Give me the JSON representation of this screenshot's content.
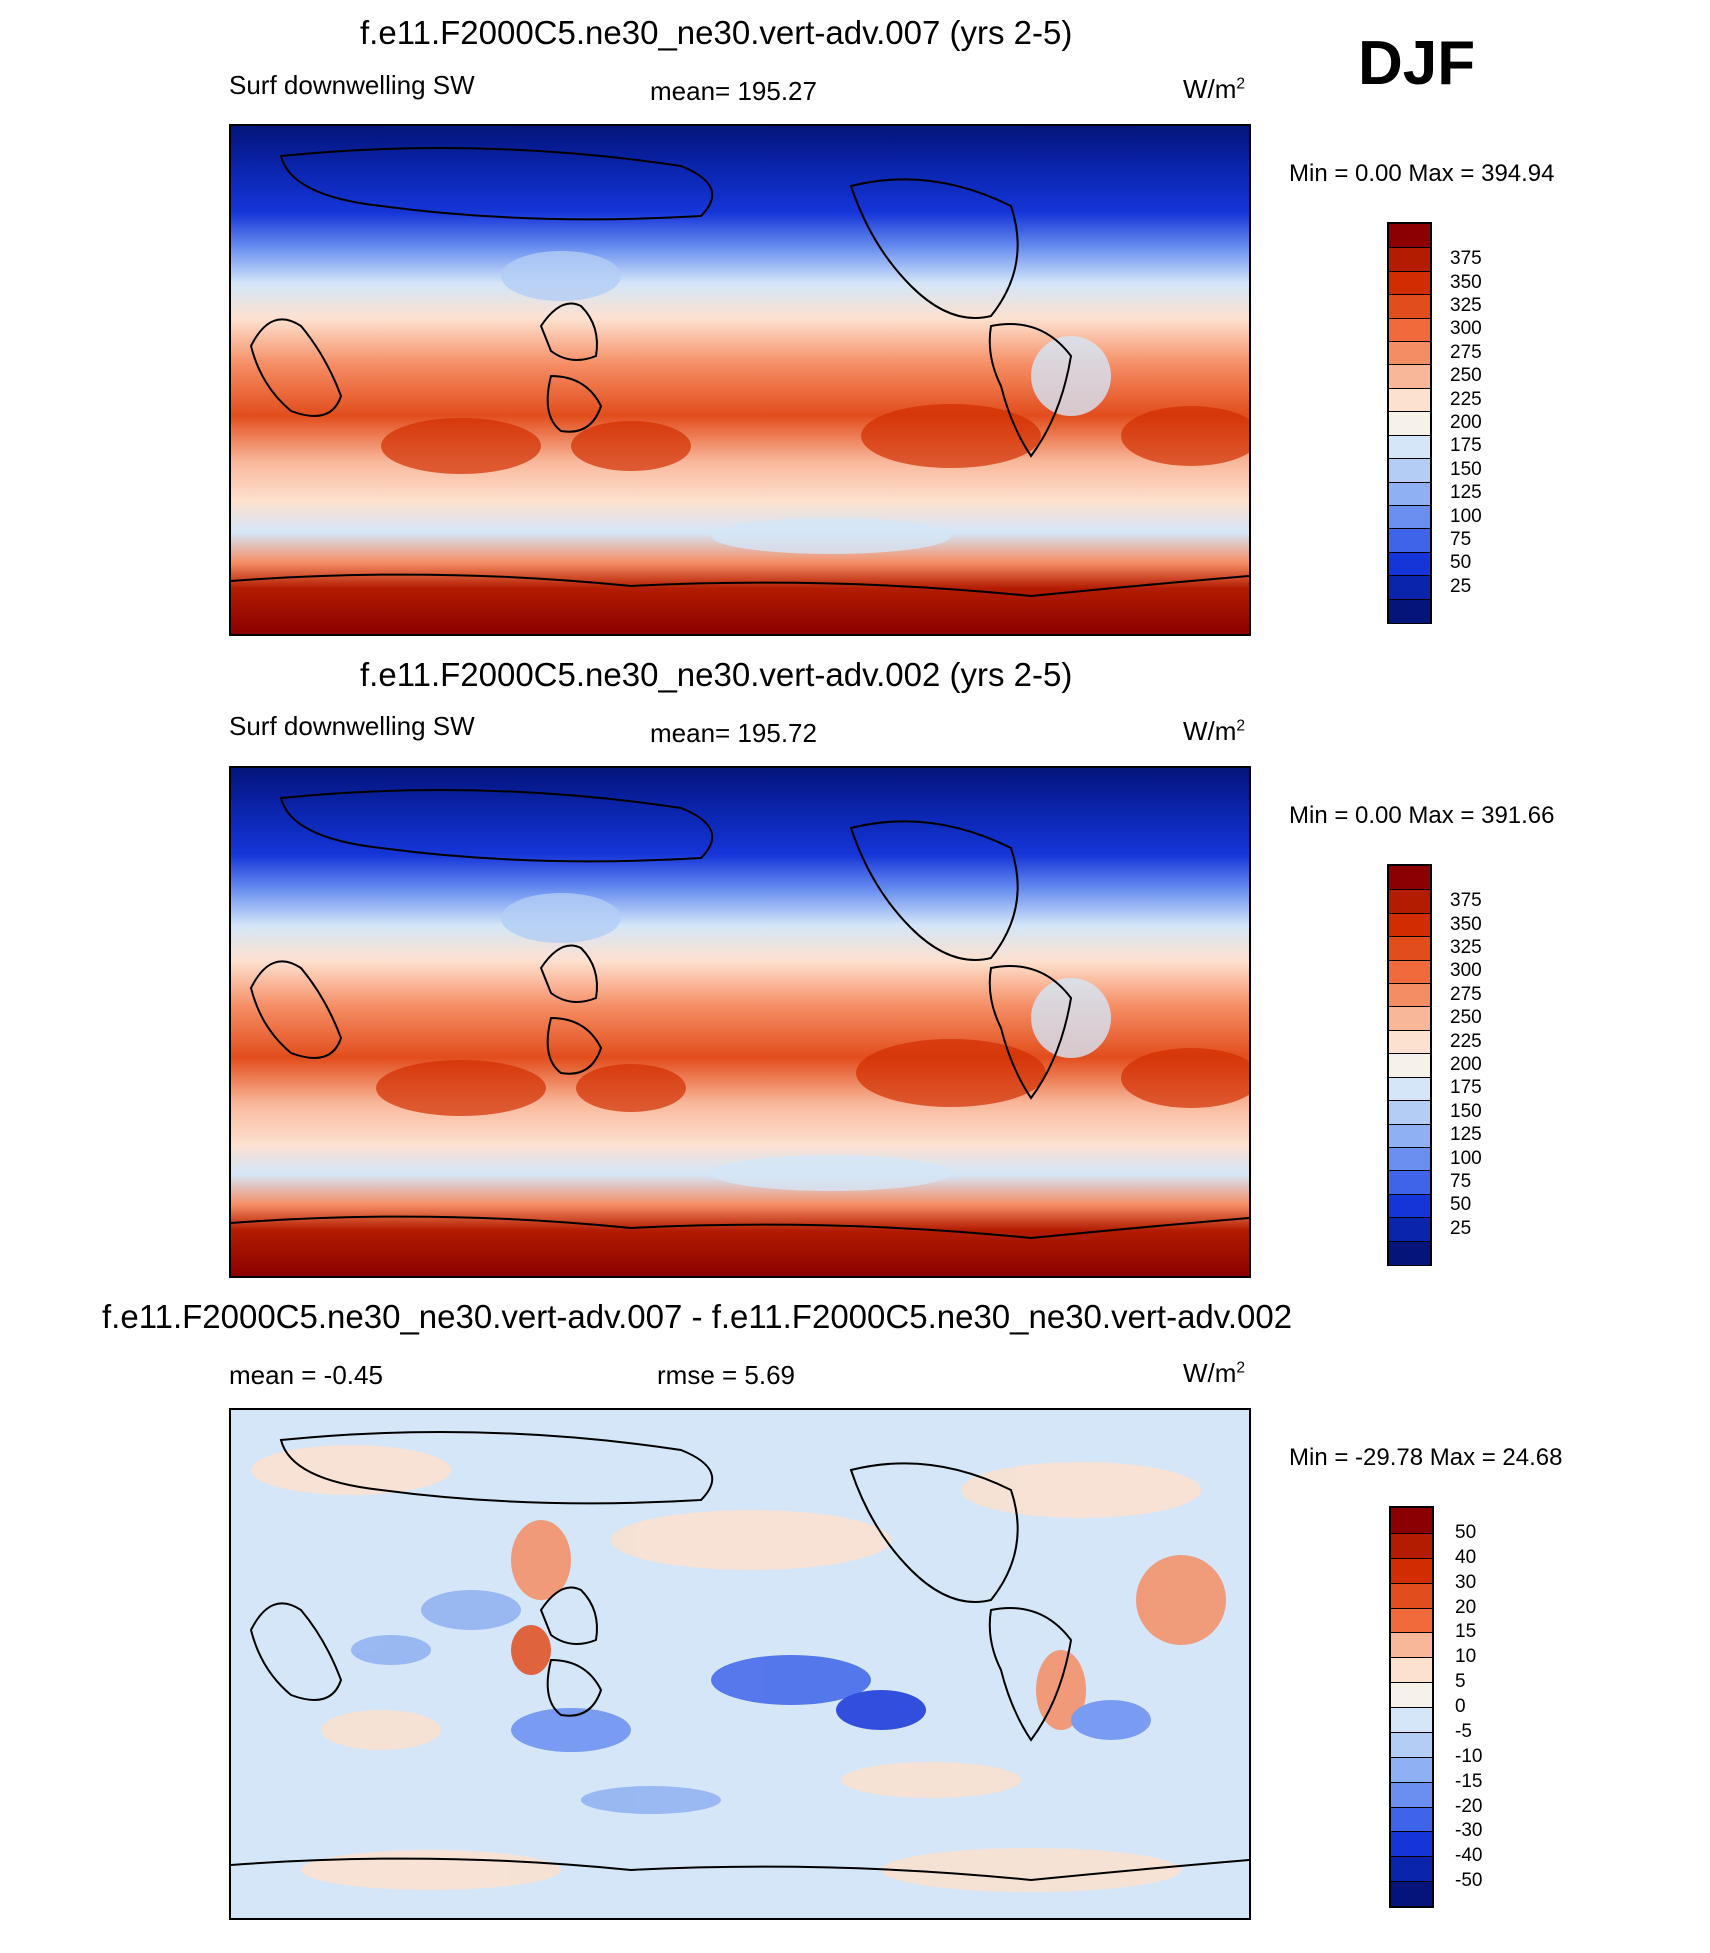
{
  "season": "DJF",
  "panels": [
    {
      "id": "p1",
      "title": "f.e11.F2000C5.ne30_ne30.vert-adv.007 (yrs 2-5)",
      "left_label": "Surf downwelling SW",
      "center_label": "mean= 195.27",
      "units_main": "W/m",
      "units_exp": "2",
      "minmax": "Min =    0.00 Max = 394.94",
      "colorbar_labels": [
        "375",
        "350",
        "325",
        "300",
        "275",
        "250",
        "225",
        "200",
        "175",
        "150",
        "125",
        "100",
        "75",
        "50",
        "25"
      ],
      "colorbar_colors": [
        "#8b0000",
        "#b31c00",
        "#d22d00",
        "#e24d1c",
        "#f06a3c",
        "#f58d64",
        "#f9b79a",
        "#fde1cf",
        "#f6f2ea",
        "#d4e6f8",
        "#b3cdf5",
        "#8fb0f2",
        "#6a8ff0",
        "#3f64ea",
        "#1535d8",
        "#0a24ab",
        "#04147a"
      ]
    },
    {
      "id": "p2",
      "title": "f.e11.F2000C5.ne30_ne30.vert-adv.002 (yrs 2-5)",
      "left_label": "Surf downwelling SW",
      "center_label": "mean= 195.72",
      "units_main": "W/m",
      "units_exp": "2",
      "minmax": "Min =    0.00 Max = 391.66",
      "colorbar_labels": [
        "375",
        "350",
        "325",
        "300",
        "275",
        "250",
        "225",
        "200",
        "175",
        "150",
        "125",
        "100",
        "75",
        "50",
        "25"
      ],
      "colorbar_colors": [
        "#8b0000",
        "#b31c00",
        "#d22d00",
        "#e24d1c",
        "#f06a3c",
        "#f58d64",
        "#f9b79a",
        "#fde1cf",
        "#f6f2ea",
        "#d4e6f8",
        "#b3cdf5",
        "#8fb0f2",
        "#6a8ff0",
        "#3f64ea",
        "#1535d8",
        "#0a24ab",
        "#04147a"
      ]
    },
    {
      "id": "p3",
      "title": "f.e11.F2000C5.ne30_ne30.vert-adv.007 - f.e11.F2000C5.ne30_ne30.vert-adv.002",
      "left_label": "mean =  -0.45",
      "center_label": "rmse =   5.69",
      "units_main": "W/m",
      "units_exp": "2",
      "minmax": "Min = -29.78 Max =  24.68",
      "colorbar_labels": [
        "50",
        "40",
        "30",
        "20",
        "15",
        "10",
        "5",
        "0",
        "-5",
        "-10",
        "-15",
        "-20",
        "-30",
        "-40",
        "-50"
      ],
      "colorbar_colors": [
        "#8b0000",
        "#b31c00",
        "#d22d00",
        "#e24d1c",
        "#f06a3c",
        "#f9b79a",
        "#fde1cf",
        "#f6f2ea",
        "#d4e6f8",
        "#b3cdf5",
        "#8fb0f2",
        "#6a8ff0",
        "#3f64ea",
        "#1535d8",
        "#0a24ab",
        "#04147a"
      ]
    }
  ],
  "chart_data": [
    {
      "type": "heatmap",
      "title": "f.e11.F2000C5.ne30_ne30.vert-adv.007 (yrs 2-5)",
      "variable": "Surf downwelling SW",
      "units": "W/m2",
      "mean": 195.27,
      "min": 0.0,
      "max": 394.94,
      "levels": [
        25,
        50,
        75,
        100,
        125,
        150,
        175,
        200,
        225,
        250,
        275,
        300,
        325,
        350,
        375
      ]
    },
    {
      "type": "heatmap",
      "title": "f.e11.F2000C5.ne30_ne30.vert-adv.002 (yrs 2-5)",
      "variable": "Surf downwelling SW",
      "units": "W/m2",
      "mean": 195.72,
      "min": 0.0,
      "max": 391.66,
      "levels": [
        25,
        50,
        75,
        100,
        125,
        150,
        175,
        200,
        225,
        250,
        275,
        300,
        325,
        350,
        375
      ]
    },
    {
      "type": "heatmap",
      "title": "f.e11.F2000C5.ne30_ne30.vert-adv.007 - f.e11.F2000C5.ne30_ne30.vert-adv.002",
      "units": "W/m2",
      "mean": -0.45,
      "rmse": 5.69,
      "min": -29.78,
      "max": 24.68,
      "levels": [
        -50,
        -40,
        -30,
        -20,
        -15,
        -10,
        -5,
        0,
        5,
        10,
        15,
        20,
        30,
        40,
        50
      ]
    }
  ]
}
